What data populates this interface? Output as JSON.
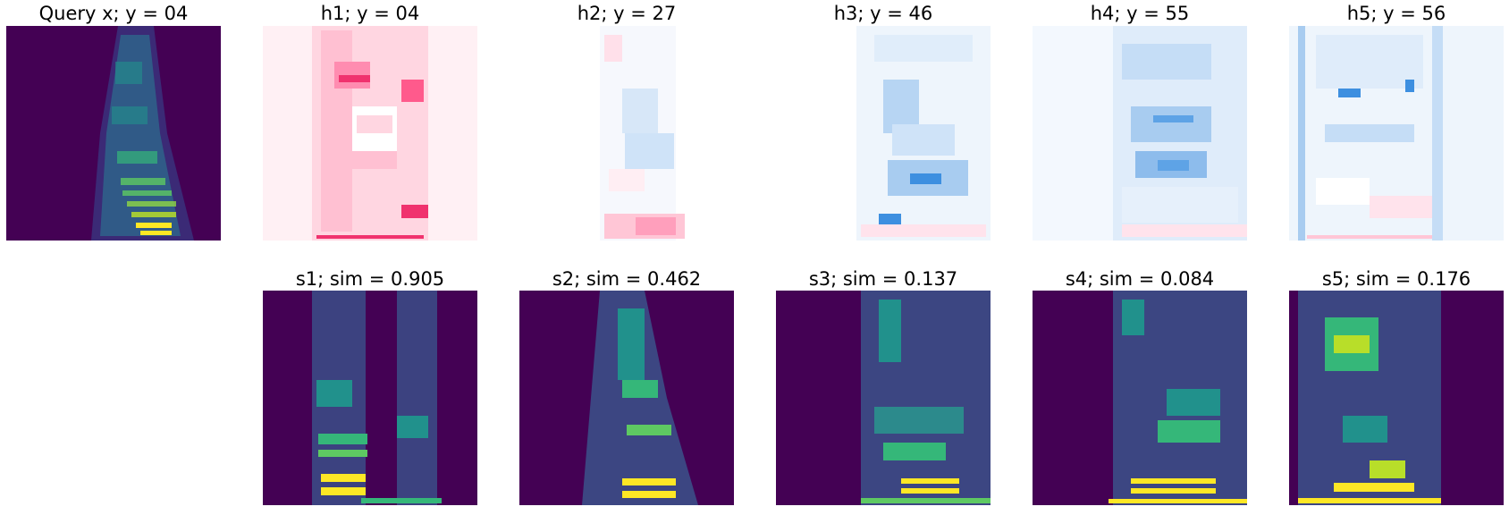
{
  "query": {
    "title": "Query x; y = 04",
    "kind": "spectrogram",
    "style": "query"
  },
  "heatmaps": [
    {
      "title": "h1; y = 04",
      "kind": "heatmap",
      "palette": "pink"
    },
    {
      "title": "h2; y = 27",
      "kind": "heatmap",
      "palette": "mixed"
    },
    {
      "title": "h3; y = 46",
      "kind": "heatmap",
      "palette": "blue"
    },
    {
      "title": "h4; y = 55",
      "kind": "heatmap",
      "palette": "blue"
    },
    {
      "title": "h5; y = 56",
      "kind": "heatmap",
      "palette": "blue"
    }
  ],
  "samples": [
    {
      "title": "s1; sim = 0.905",
      "kind": "spectrogram",
      "style": "s1"
    },
    {
      "title": "s2; sim = 0.462",
      "kind": "spectrogram",
      "style": "s2"
    },
    {
      "title": "s3; sim = 0.137",
      "kind": "spectrogram",
      "style": "s3"
    },
    {
      "title": "s4; sim = 0.084",
      "kind": "spectrogram",
      "style": "s4"
    },
    {
      "title": "s5; sim = 0.176",
      "kind": "spectrogram",
      "style": "s5"
    }
  ],
  "colors": {
    "viridis_bg": "#440154",
    "viridis_mid": "#21918c",
    "viridis_high": "#5ec962",
    "viridis_top": "#fde725",
    "pink_strong": "#f0326e",
    "pink_soft": "#ffc6d6",
    "blue_strong": "#3d8fe0",
    "blue_soft": "#cfe3f8"
  }
}
